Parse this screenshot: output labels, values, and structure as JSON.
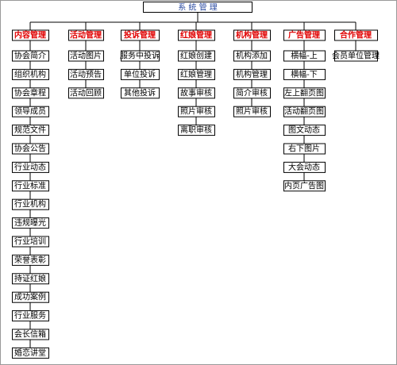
{
  "root": "系 统 管 理",
  "columns": [
    {
      "title": "内容管理",
      "items": [
        "协会简介",
        "组织机构",
        "协会章程",
        "领导成员",
        "规范文件",
        "协会公告",
        "行业动态",
        "行业标准",
        "行业机构",
        "违规曝光",
        "行业培训",
        "荣誉表彰",
        "持证红娘",
        "成功案例",
        "行业服务",
        "会长信箱",
        "婚恋讲堂"
      ]
    },
    {
      "title": "活动管理",
      "items": [
        "活动图片",
        "活动预告",
        "活动回顾"
      ]
    },
    {
      "title": "投诉管理",
      "items": [
        "服务中投诉",
        "单位投诉",
        "其他投诉"
      ]
    },
    {
      "title": "红娘管理",
      "items": [
        "红娘创建",
        "红娘管理",
        "故事审核",
        "照片审核",
        "离职审核"
      ]
    },
    {
      "title": "机构管理",
      "items": [
        "机构添加",
        "机构管理",
        "简介审核",
        "照片审核"
      ]
    },
    {
      "title": "广告管理",
      "items": [
        "横幅-上",
        "横幅-下",
        "左上翻页图",
        "活动翻页图",
        "图文动态",
        "右下图片",
        "大会动态",
        "内页广告图"
      ]
    },
    {
      "title": "合作管理",
      "items": [
        "会员单位管理"
      ]
    }
  ]
}
